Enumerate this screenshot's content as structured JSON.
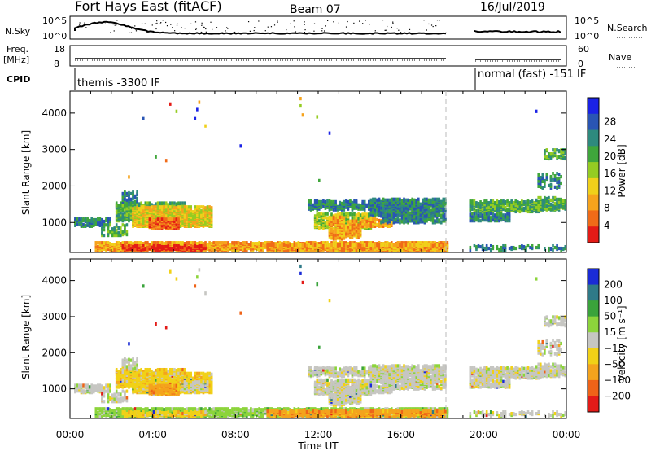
{
  "header": {
    "title": "Fort Hays East (fitACF)",
    "beam": "Beam 07",
    "date": "16/Jul/2019"
  },
  "top_panels": {
    "nsky_label": "N.Sky",
    "nsky_ticks": [
      "10^5",
      "10^0"
    ],
    "nsearch_label": "N.Search",
    "nsearch_ticks": [
      "10^5",
      "10^0"
    ],
    "freq_label": "Freq.",
    "freq_unit": "[MHz]",
    "freq_ticks": [
      "18",
      "8"
    ],
    "nave_label": "Nave",
    "nave_ticks": [
      "60",
      "0"
    ],
    "cpid_label": "CPID",
    "cpid_segments": [
      "themis -3300 IF",
      "normal (fast) -151 IF"
    ]
  },
  "chart_data": [
    {
      "type": "heatmap",
      "title": "",
      "ylabel": "Slant Range [km]",
      "xlabel": "",
      "x_range_hours": [
        0,
        24
      ],
      "y_range_km": [
        180,
        4600
      ],
      "yticks": [
        "1000",
        "2000",
        "3000",
        "4000"
      ],
      "data_gap_hours": [
        18.3,
        19.2
      ],
      "colorbar": {
        "label": "Power [dB]",
        "ticks": [
          "4",
          "8",
          "12",
          "16",
          "20",
          "24",
          "28"
        ],
        "colors": [
          "#1a22e6",
          "#2955b4",
          "#2e8a7e",
          "#3fa63b",
          "#95cc22",
          "#f0d01a",
          "#f6a31c",
          "#f06b18",
          "#e41b16"
        ]
      }
    },
    {
      "type": "heatmap",
      "title": "",
      "ylabel": "Slant Range [km]",
      "xlabel": "Time UT",
      "x_range_hours": [
        0,
        24
      ],
      "y_range_km": [
        180,
        4600
      ],
      "yticks": [
        "1000",
        "2000",
        "3000",
        "4000"
      ],
      "xticks": [
        "00:00",
        "04:00",
        "08:00",
        "12:00",
        "16:00",
        "20:00",
        "00:00"
      ],
      "colorbar": {
        "label": "Velocity [m s⁻¹]",
        "ticks": [
          "200",
          "100",
          "50",
          "15",
          "−15",
          "−50",
          "−100",
          "−200"
        ],
        "colors": [
          "#1a2bd6",
          "#2f7a88",
          "#3aa33b",
          "#8cd43b",
          "#c6c6c2",
          "#f1d117",
          "#f4a31d",
          "#ef6318",
          "#e31b18"
        ]
      }
    }
  ]
}
